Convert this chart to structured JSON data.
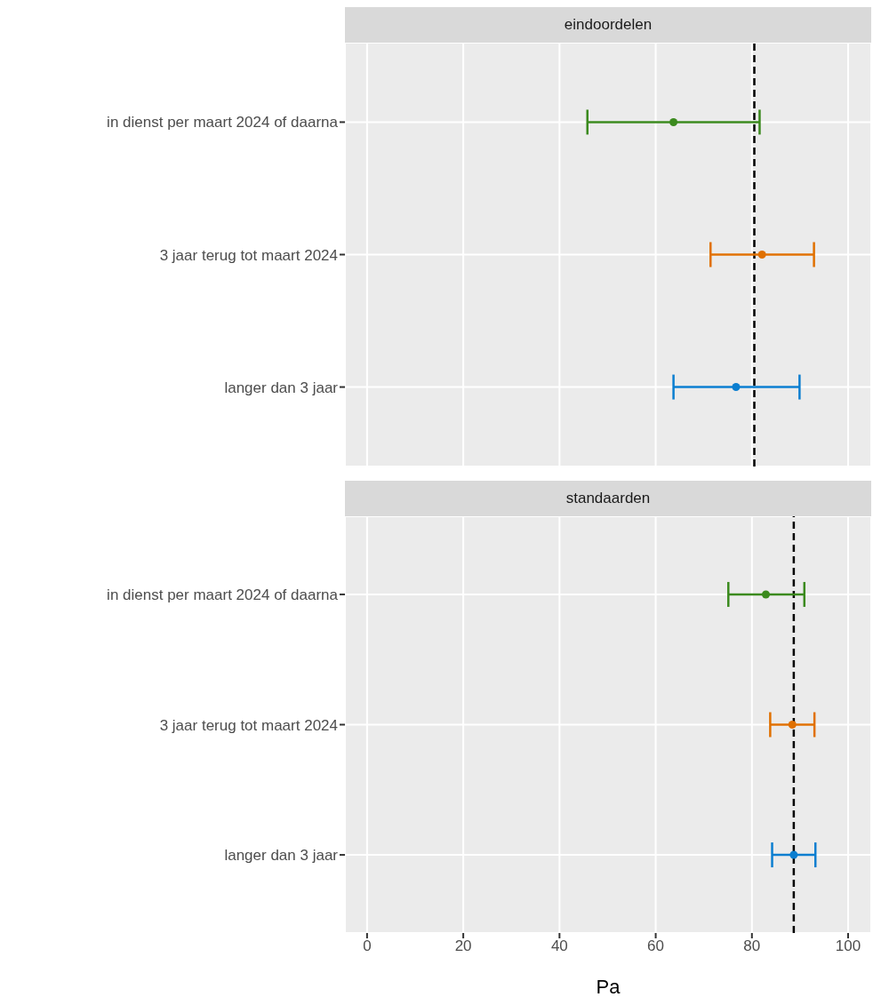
{
  "chart_data": [
    {
      "type": "scatter",
      "title": "eindoordelen",
      "orientation": "horizontal",
      "categories": [
        "in dienst per maart 2024 of daarna",
        "3 jaar terug tot maart 2024",
        "langer dan 3 jaar"
      ],
      "values": [
        63.7,
        82.1,
        76.7
      ],
      "errors": [
        [
          45.8,
          81.6
        ],
        [
          71.4,
          92.9
        ],
        [
          63.7,
          89.9
        ]
      ],
      "colors": [
        "#3b8a1e",
        "#e07000",
        "#0b7ed0"
      ],
      "marker": "circle",
      "xlim": [
        -4.6,
        104.8
      ],
      "xticks": [
        0,
        20,
        40,
        60,
        80,
        100
      ],
      "grid": true,
      "tick_labels": "y",
      "legend": false,
      "ref_lines": [
        {
          "axis": "x",
          "value": 80.5,
          "color": "#000000",
          "line_style": "dashed"
        }
      ]
    },
    {
      "type": "scatter",
      "title": "standaarden",
      "orientation": "horizontal",
      "categories": [
        "in dienst per maart 2024 of daarna",
        "3 jaar terug tot maart 2024",
        "langer dan 3 jaar"
      ],
      "values": [
        82.9,
        88.4,
        88.7
      ],
      "errors": [
        [
          75.1,
          90.9
        ],
        [
          83.8,
          93.0
        ],
        [
          84.2,
          93.2
        ]
      ],
      "colors": [
        "#3b8a1e",
        "#e07000",
        "#0b7ed0"
      ],
      "marker": "circle",
      "xlim": [
        -4.6,
        104.8
      ],
      "xticks": [
        0,
        20,
        40,
        60,
        80,
        100
      ],
      "xlabel": "Pa",
      "grid": true,
      "legend": false,
      "ref_lines": [
        {
          "axis": "x",
          "value": 88.7,
          "color": "#000000",
          "line_style": "dashed"
        }
      ]
    }
  ]
}
